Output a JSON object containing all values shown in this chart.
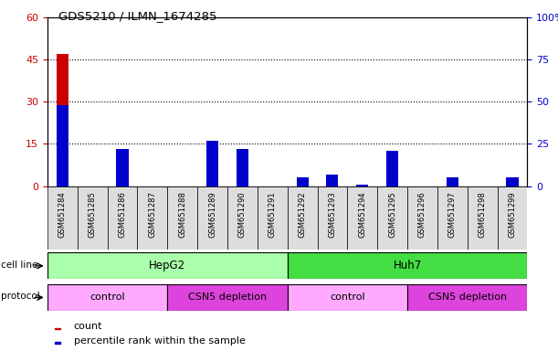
{
  "title": "GDS5210 / ILMN_1674285",
  "samples": [
    "GSM651284",
    "GSM651285",
    "GSM651286",
    "GSM651287",
    "GSM651288",
    "GSM651289",
    "GSM651290",
    "GSM651291",
    "GSM651292",
    "GSM651293",
    "GSM651294",
    "GSM651295",
    "GSM651296",
    "GSM651297",
    "GSM651298",
    "GSM651299"
  ],
  "counts": [
    47,
    0,
    9,
    0,
    0,
    16,
    9,
    0,
    2,
    3,
    0,
    7,
    0,
    2,
    0,
    2
  ],
  "percentile": [
    48,
    0,
    22,
    0,
    0,
    27,
    22,
    0,
    5,
    7,
    1,
    21,
    0,
    5,
    0,
    5
  ],
  "count_color": "#cc0000",
  "percentile_color": "#0000cc",
  "left_ylim": [
    0,
    60
  ],
  "right_ylim": [
    0,
    100
  ],
  "left_yticks": [
    0,
    15,
    30,
    45,
    60
  ],
  "right_yticks": [
    0,
    25,
    50,
    75,
    100
  ],
  "right_yticklabels": [
    "0",
    "25",
    "50",
    "75",
    "100%"
  ],
  "cell_line_labels": [
    {
      "text": "HepG2",
      "start": 0,
      "end": 8,
      "color": "#aaffaa"
    },
    {
      "text": "Huh7",
      "start": 8,
      "end": 16,
      "color": "#44dd44"
    }
  ],
  "protocol_labels": [
    {
      "text": "control",
      "start": 0,
      "end": 4,
      "color": "#ffaaff"
    },
    {
      "text": "CSN5 depletion",
      "start": 4,
      "end": 8,
      "color": "#dd44dd"
    },
    {
      "text": "control",
      "start": 8,
      "end": 12,
      "color": "#ffaaff"
    },
    {
      "text": "CSN5 depletion",
      "start": 12,
      "end": 16,
      "color": "#dd44dd"
    }
  ],
  "legend_count_label": "count",
  "legend_pct_label": "percentile rank within the sample",
  "background_color": "#ffffff",
  "tick_label_color_left": "#cc0000",
  "tick_label_color_right": "#0000cc",
  "xlabel_bg_color": "#dddddd",
  "bar_width": 0.4
}
